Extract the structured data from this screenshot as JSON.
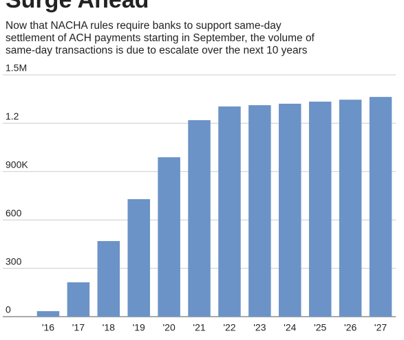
{
  "chart_data": {
    "type": "bar",
    "title": "Surge Ahead",
    "subtitle": [
      "Now that NACHA rules require banks to support same-day",
      "settlement of ACH payments starting in September, the volume of",
      "same-day transactions is due to escalate over the next 10 years"
    ],
    "categories": [
      "'16",
      "'17",
      "'18",
      "'19",
      "'20",
      "'21",
      "'22",
      "'23",
      "'24",
      "'25",
      "'26",
      "'27"
    ],
    "values": [
      34,
      213,
      469,
      729,
      989,
      1219,
      1304,
      1312,
      1321,
      1334,
      1346,
      1363
    ],
    "color": "#6b93c7",
    "ylim": [
      0,
      1500
    ],
    "yticks": [
      0,
      300,
      600,
      {
        "value": 900,
        "label": "900K"
      },
      {
        "value": 1200,
        "label": "1.2"
      },
      {
        "value": 1500,
        "label": "1.5M"
      }
    ],
    "grid": true
  }
}
